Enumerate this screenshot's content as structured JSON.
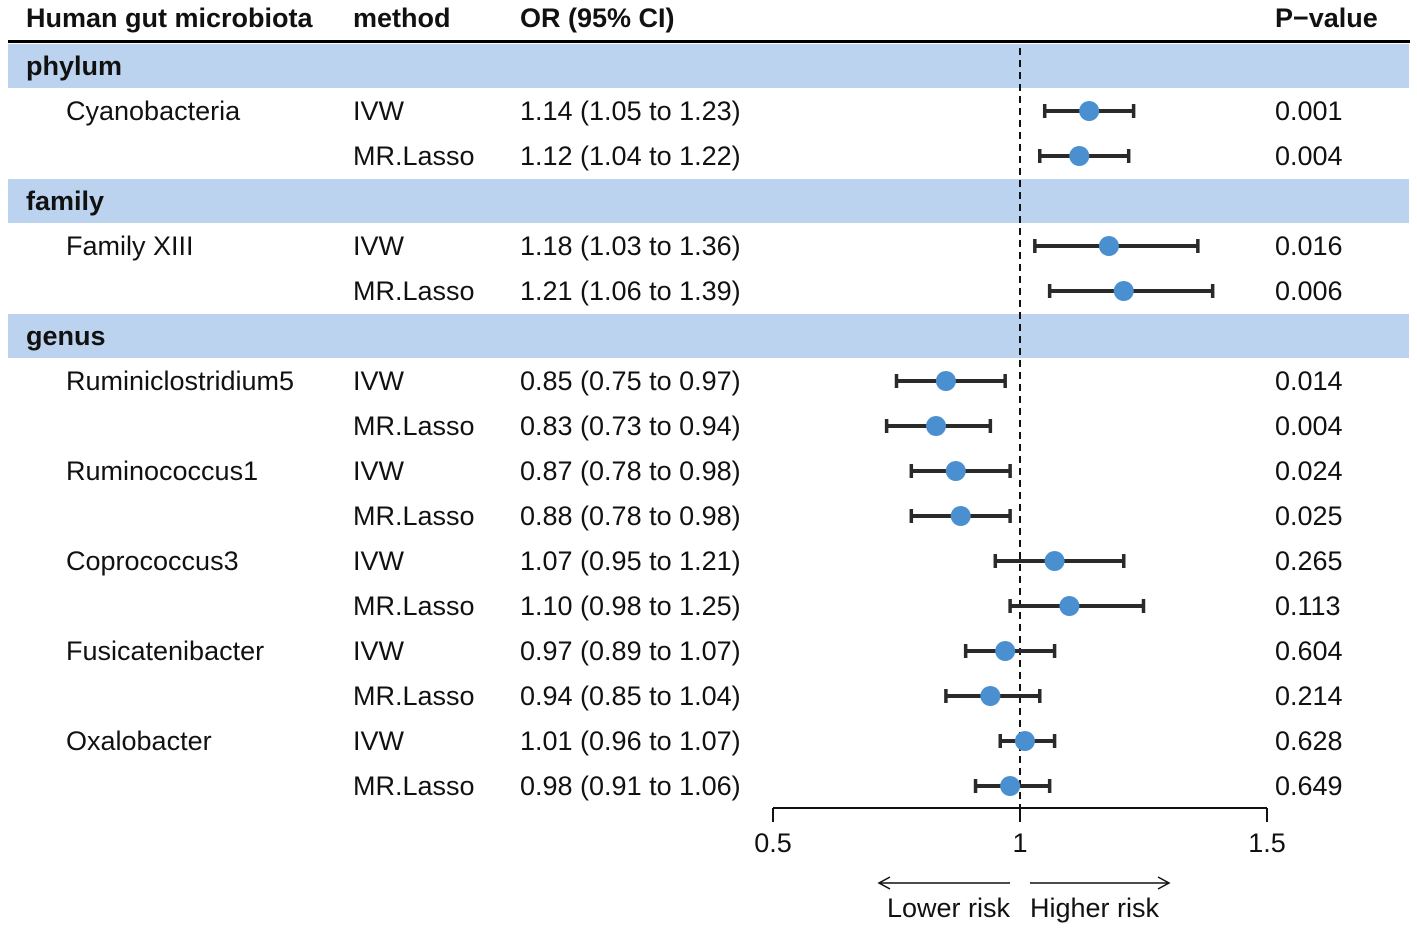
{
  "colors": {
    "band": "#bcd3ef",
    "point": "#4a90d0",
    "ci_line": "#2a2a2a",
    "text": "#111111"
  },
  "headers": {
    "microbiota": "Human gut microbiota",
    "method": "method",
    "or": "OR (95% CI)",
    "pvalue": "P−value"
  },
  "chart_data": {
    "type": "forest",
    "x_scale_min": 0.5,
    "x_scale_max": 1.5,
    "reference_line": 1,
    "x_ticks": [
      "0.5",
      "1",
      "1.5"
    ],
    "lower_label": "Lower risk",
    "higher_label": "Higher risk",
    "rows": [
      {
        "kind": "group",
        "label": "phylum"
      },
      {
        "kind": "data",
        "taxon": "Cyanobacteria",
        "method": "IVW",
        "or_text": "1.14 (1.05 to 1.23)",
        "or": 1.14,
        "lo": 1.05,
        "hi": 1.23,
        "p": "0.001"
      },
      {
        "kind": "data",
        "taxon": "",
        "method": "MR.Lasso",
        "or_text": "1.12 (1.04 to 1.22)",
        "or": 1.12,
        "lo": 1.04,
        "hi": 1.22,
        "p": "0.004"
      },
      {
        "kind": "group",
        "label": "family"
      },
      {
        "kind": "data",
        "taxon": "Family XIII",
        "method": "IVW",
        "or_text": "1.18 (1.03 to 1.36)",
        "or": 1.18,
        "lo": 1.03,
        "hi": 1.36,
        "p": "0.016"
      },
      {
        "kind": "data",
        "taxon": "",
        "method": "MR.Lasso",
        "or_text": "1.21 (1.06 to 1.39)",
        "or": 1.21,
        "lo": 1.06,
        "hi": 1.39,
        "p": "0.006"
      },
      {
        "kind": "group",
        "label": "genus"
      },
      {
        "kind": "data",
        "taxon": "Ruminiclostridium5",
        "method": "IVW",
        "or_text": "0.85 (0.75 to 0.97)",
        "or": 0.85,
        "lo": 0.75,
        "hi": 0.97,
        "p": "0.014"
      },
      {
        "kind": "data",
        "taxon": "",
        "method": "MR.Lasso",
        "or_text": "0.83 (0.73 to 0.94)",
        "or": 0.83,
        "lo": 0.73,
        "hi": 0.94,
        "p": "0.004"
      },
      {
        "kind": "data",
        "taxon": "Ruminococcus1",
        "method": "IVW",
        "or_text": "0.87 (0.78 to 0.98)",
        "or": 0.87,
        "lo": 0.78,
        "hi": 0.98,
        "p": "0.024"
      },
      {
        "kind": "data",
        "taxon": "",
        "method": "MR.Lasso",
        "or_text": "0.88 (0.78 to 0.98)",
        "or": 0.88,
        "lo": 0.78,
        "hi": 0.98,
        "p": "0.025"
      },
      {
        "kind": "data",
        "taxon": "Coprococcus3",
        "method": "IVW",
        "or_text": "1.07 (0.95 to 1.21)",
        "or": 1.07,
        "lo": 0.95,
        "hi": 1.21,
        "p": "0.265"
      },
      {
        "kind": "data",
        "taxon": "",
        "method": "MR.Lasso",
        "or_text": "1.10 (0.98 to 1.25)",
        "or": 1.1,
        "lo": 0.98,
        "hi": 1.25,
        "p": "0.113"
      },
      {
        "kind": "data",
        "taxon": "Fusicatenibacter",
        "method": "IVW",
        "or_text": "0.97 (0.89 to 1.07)",
        "or": 0.97,
        "lo": 0.89,
        "hi": 1.07,
        "p": "0.604"
      },
      {
        "kind": "data",
        "taxon": "",
        "method": "MR.Lasso",
        "or_text": "0.94 (0.85 to 1.04)",
        "or": 0.94,
        "lo": 0.85,
        "hi": 1.04,
        "p": "0.214"
      },
      {
        "kind": "data",
        "taxon": "Oxalobacter",
        "method": "IVW",
        "or_text": "1.01 (0.96 to 1.07)",
        "or": 1.01,
        "lo": 0.96,
        "hi": 1.07,
        "p": "0.628"
      },
      {
        "kind": "data",
        "taxon": "",
        "method": "MR.Lasso",
        "or_text": "0.98 (0.91 to 1.06)",
        "or": 0.98,
        "lo": 0.91,
        "hi": 1.06,
        "p": "0.649"
      }
    ]
  }
}
